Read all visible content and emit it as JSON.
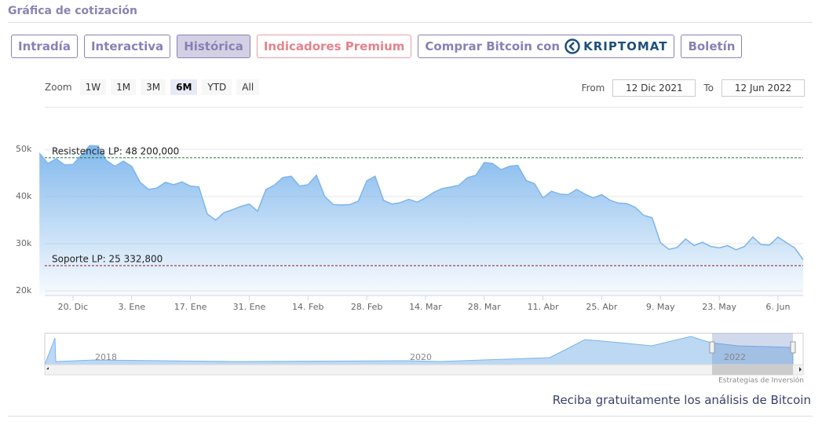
{
  "header": {
    "title": "Gráfica de cotización"
  },
  "tabs": [
    "Intradía",
    "Interactiva",
    "Histórica",
    "Indicadores Premium",
    "Comprar Bitcoin con",
    "Boletín"
  ],
  "active_tab": 2,
  "partner": "KRIPTOMAT",
  "range_selector": {
    "label": "Zoom",
    "buttons": [
      "1W",
      "1M",
      "3M",
      "6M",
      "YTD",
      "All"
    ],
    "active_button": 3,
    "from_label": "From",
    "from": "12 Dic 2021",
    "to_label": "To",
    "to": "12 Jun 2022"
  },
  "chart_data": {
    "type": "area",
    "color": "#7cb5ec",
    "categories": [
      null,
      null,
      null,
      null,
      "20. Dic",
      null,
      null,
      null,
      null,
      null,
      null,
      "3. Ene",
      null,
      null,
      null,
      null,
      null,
      null,
      "17. Ene",
      null,
      null,
      null,
      null,
      null,
      null,
      "31. Ene",
      null,
      null,
      null,
      null,
      null,
      null,
      "14. Feb",
      null,
      null,
      null,
      null,
      null,
      null,
      "28. Feb",
      null,
      null,
      null,
      null,
      null,
      null,
      "14. Mar",
      null,
      null,
      null,
      null,
      null,
      null,
      "28. Mar",
      null,
      null,
      null,
      null,
      null,
      null,
      "11. Abr",
      null,
      null,
      null,
      null,
      null,
      null,
      "25. Abr",
      null,
      null,
      null,
      null,
      null,
      null,
      "9. May",
      null,
      null,
      null,
      null,
      null,
      null,
      "23. May",
      null,
      null,
      null,
      null,
      null,
      null,
      "6. Jun",
      null,
      null,
      null
    ],
    "values": [
      49200,
      47000,
      48000,
      46700,
      46800,
      48800,
      50800,
      50700,
      47600,
      46400,
      47500,
      46400,
      43000,
      41500,
      41800,
      43000,
      42500,
      43100,
      42200,
      42000,
      36300,
      35000,
      36600,
      37200,
      37900,
      38400,
      36900,
      41500,
      42400,
      44000,
      44300,
      42200,
      42500,
      44500,
      40000,
      38300,
      38200,
      38300,
      39000,
      43300,
      44300,
      39200,
      38400,
      38700,
      39400,
      38800,
      39700,
      40900,
      41700,
      42000,
      42400,
      44000,
      44500,
      47200,
      47000,
      45700,
      46400,
      46600,
      43400,
      42700,
      39700,
      41100,
      40500,
      40400,
      41500,
      40500,
      39700,
      40400,
      39200,
      38600,
      38500,
      37700,
      36000,
      35500,
      30200,
      28800,
      29200,
      31000,
      29600,
      30300,
      29400,
      29100,
      29600,
      28700,
      29400,
      31400,
      29800,
      29700,
      31400,
      30200,
      29100,
      26600
    ],
    "ylim": [
      19000,
      51000
    ],
    "yticks": [
      {
        "value": 20000,
        "label": "20k"
      },
      {
        "value": 30000,
        "label": "30k"
      },
      {
        "value": 40000,
        "label": "40k"
      },
      {
        "value": 50000,
        "label": "50k"
      }
    ],
    "grid": true,
    "annotations": [
      {
        "label": "Resistencia LP: 48 200,000",
        "value": 48200,
        "color": "#1f7a3a"
      },
      {
        "label": "Soporte LP: 25 332,800",
        "value": 25332.8,
        "color": "#8b1a2b"
      }
    ]
  },
  "navigator": {
    "labels": [
      "2018",
      "2020",
      "2022"
    ]
  },
  "credits": "Estrategias de Inversión",
  "footer": "Reciba gratuitamente los análisis de Bitcoin"
}
